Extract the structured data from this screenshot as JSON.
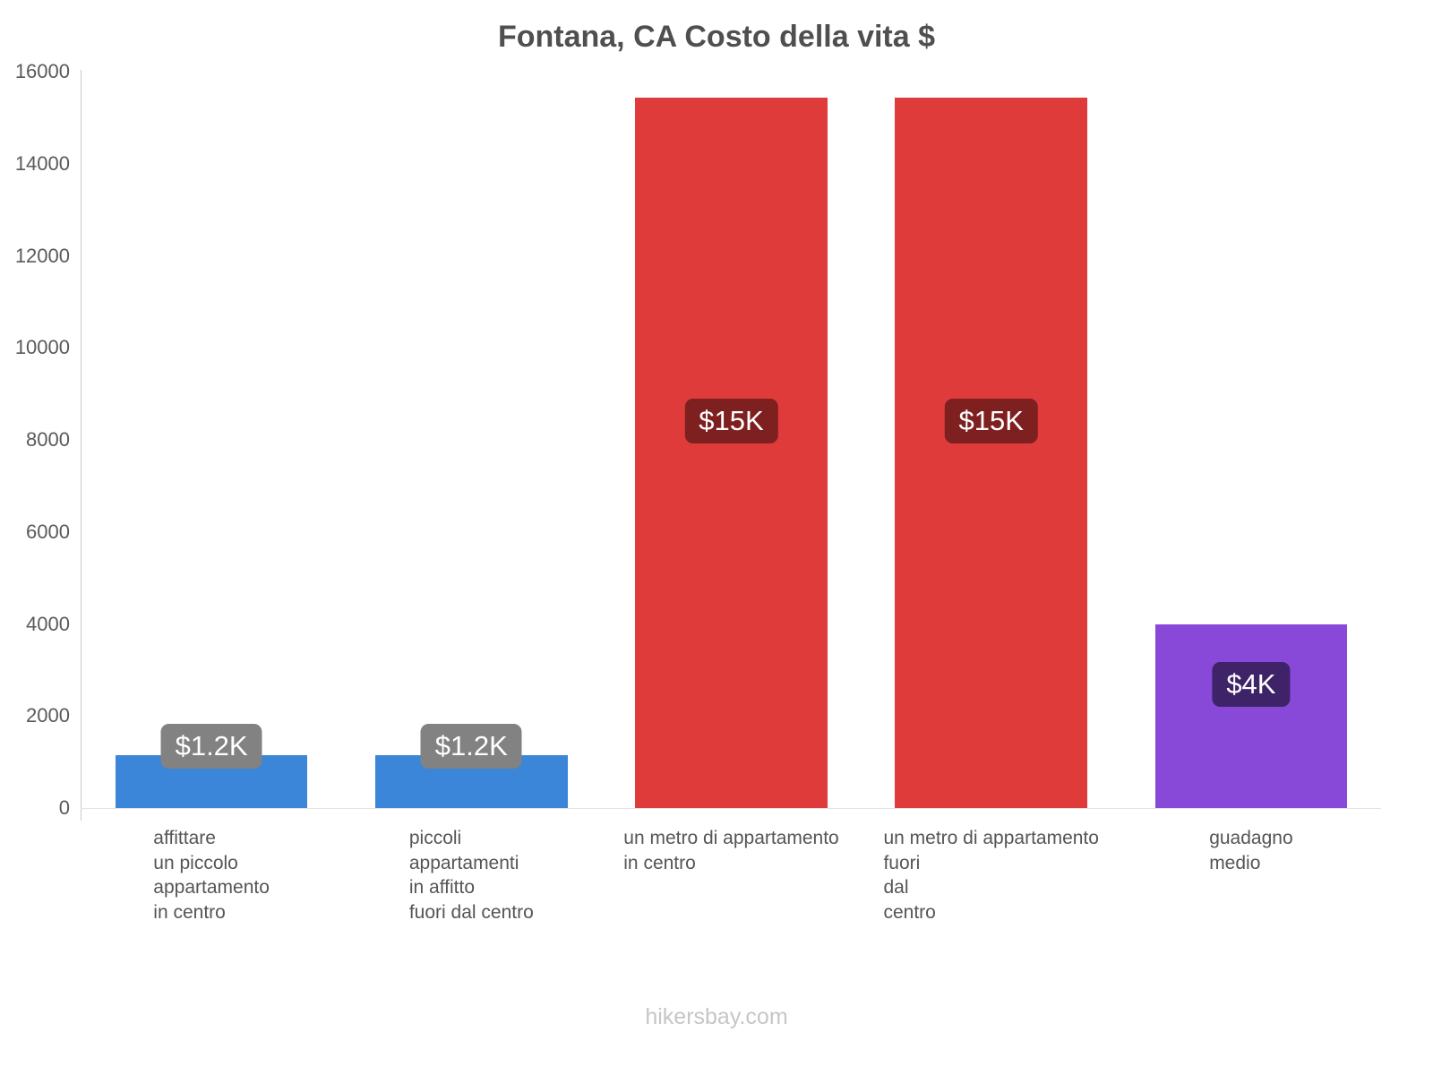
{
  "chart_data": {
    "type": "bar",
    "title": "Fontana, CA Costo della vita $",
    "xlabel": "",
    "ylabel": "",
    "ylim": [
      0,
      16000
    ],
    "yticks": [
      0,
      2000,
      4000,
      6000,
      8000,
      10000,
      12000,
      14000,
      16000
    ],
    "grid": false,
    "legend": false,
    "categories": [
      [
        "affittare",
        "un piccolo",
        "appartamento",
        "in centro"
      ],
      [
        "piccoli",
        "appartamenti",
        "in affitto",
        "fuori dal centro"
      ],
      [
        "un metro di appartamento",
        "in centro"
      ],
      [
        "un metro di appartamento",
        "fuori",
        "dal",
        "centro"
      ],
      [
        "guadagno",
        "medio"
      ]
    ],
    "values": [
      1150,
      1150,
      15430,
      15430,
      4000
    ],
    "value_labels": [
      "$1.2K",
      "$1.2K",
      "$15K",
      "$15K",
      "$4K"
    ],
    "bar_colors": [
      "#3b86d8",
      "#3b86d8",
      "#df3b3b",
      "#df3b3b",
      "#8848d8"
    ],
    "badge_colors": [
      "#828282",
      "#828282",
      "#7e2020",
      "#7e2020",
      "#3f2368"
    ]
  },
  "footer": {
    "watermark": "hikersbay.com"
  }
}
